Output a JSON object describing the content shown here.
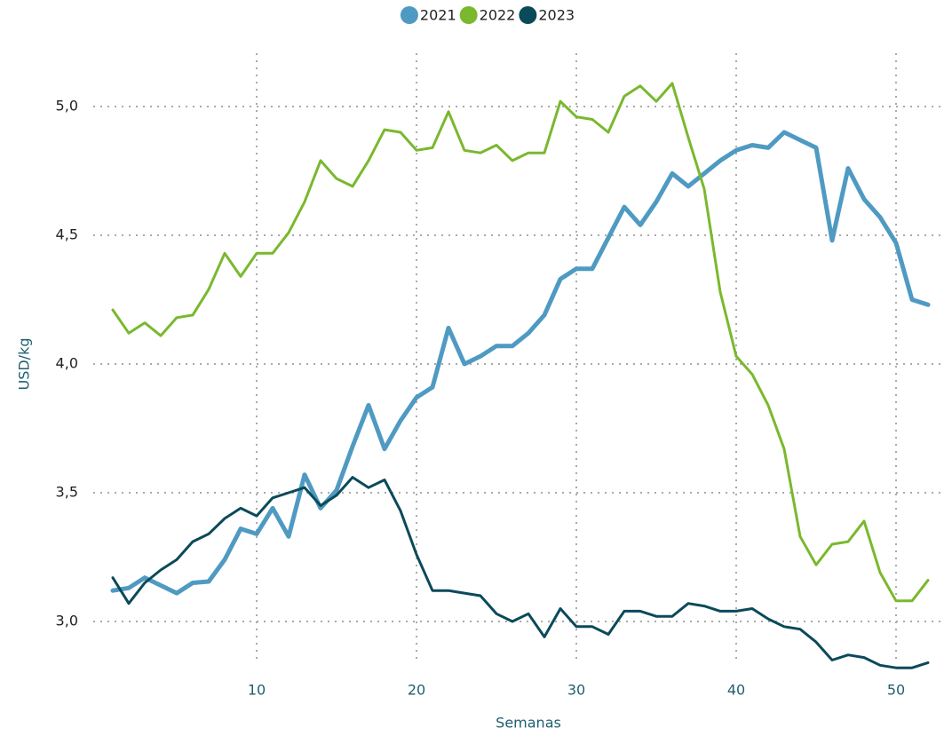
{
  "chart_data": {
    "type": "line",
    "x": [
      1,
      2,
      3,
      4,
      5,
      6,
      7,
      8,
      9,
      10,
      11,
      12,
      13,
      14,
      15,
      16,
      17,
      18,
      19,
      20,
      21,
      22,
      23,
      24,
      25,
      26,
      27,
      28,
      29,
      30,
      31,
      32,
      33,
      34,
      35,
      36,
      37,
      38,
      39,
      40,
      41,
      42,
      43,
      44,
      45,
      46,
      47,
      48,
      49,
      50,
      51,
      52
    ],
    "series": [
      {
        "name": "2021",
        "color": "#4f9ac2",
        "values": [
          3.12,
          3.13,
          3.17,
          3.14,
          3.11,
          3.15,
          3.155,
          3.24,
          3.36,
          3.34,
          3.44,
          3.33,
          3.57,
          3.44,
          3.51,
          3.68,
          3.84,
          3.67,
          3.78,
          3.87,
          3.91,
          4.14,
          4.0,
          4.03,
          4.07,
          4.07,
          4.12,
          4.19,
          4.33,
          4.37,
          4.37,
          4.49,
          4.61,
          4.54,
          4.63,
          4.74,
          4.69,
          4.74,
          4.79,
          4.83,
          4.85,
          4.84,
          4.9,
          4.87,
          4.84,
          4.48,
          4.76,
          4.64,
          4.57,
          4.47,
          4.25,
          4.23
        ]
      },
      {
        "name": "2022",
        "color": "#7ab82e",
        "values": [
          4.21,
          4.12,
          4.16,
          4.11,
          4.18,
          4.19,
          4.29,
          4.43,
          4.34,
          4.43,
          4.43,
          4.51,
          4.63,
          4.79,
          4.72,
          4.69,
          4.79,
          4.91,
          4.9,
          4.83,
          4.84,
          4.98,
          4.83,
          4.82,
          4.85,
          4.79,
          4.82,
          4.82,
          5.02,
          4.96,
          4.95,
          4.9,
          5.04,
          5.08,
          5.02,
          5.09,
          4.88,
          4.68,
          4.28,
          4.03,
          3.96,
          3.84,
          3.67,
          3.33,
          3.22,
          3.3,
          3.31,
          3.39,
          3.19,
          3.08,
          3.08,
          3.16
        ]
      },
      {
        "name": "2023",
        "color": "#0b4a5a",
        "values": [
          3.17,
          3.07,
          3.15,
          3.2,
          3.24,
          3.31,
          3.34,
          3.4,
          3.44,
          3.41,
          3.48,
          3.5,
          3.52,
          3.45,
          3.49,
          3.56,
          3.52,
          3.55,
          3.43,
          3.26,
          3.12,
          3.12,
          3.11,
          3.1,
          3.03,
          3.0,
          3.03,
          2.94,
          3.05,
          2.98,
          2.98,
          2.95,
          3.04,
          3.04,
          3.02,
          3.02,
          3.07,
          3.06,
          3.04,
          3.04,
          3.05,
          3.01,
          2.98,
          2.97,
          2.92,
          2.85,
          2.87,
          2.86,
          2.83,
          2.82,
          2.82,
          2.84
        ]
      }
    ],
    "x_label": "Semanas",
    "y_label": "USD/kg",
    "xlim": [
      0,
      53
    ],
    "xticks": [
      10,
      20,
      30,
      40,
      50
    ],
    "ylim": [
      2.8,
      5.2
    ],
    "yticks": [
      {
        "value": 3.0,
        "label": "3,0"
      },
      {
        "value": 3.5,
        "label": "3,5"
      },
      {
        "value": 4.0,
        "label": "4,0"
      },
      {
        "value": 4.5,
        "label": "4,5"
      },
      {
        "value": 5.0,
        "label": "5,0"
      }
    ],
    "grid": true,
    "legend": "top"
  }
}
